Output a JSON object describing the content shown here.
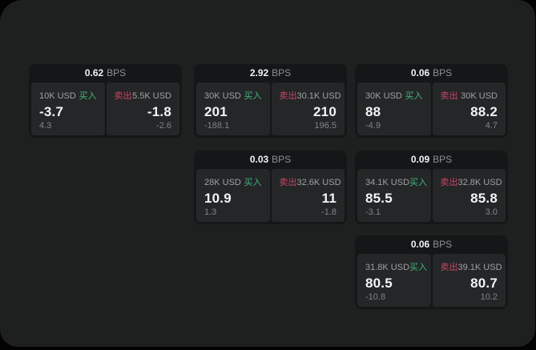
{
  "labels": {
    "bps_unit": "BPS",
    "buy": "买入",
    "sell": "卖出"
  },
  "colors": {
    "background": "#030303",
    "panel_bg": "#1e1f1f",
    "card_bg": "#151617",
    "cell_bg": "#252627",
    "buy": "#3eb878",
    "sell": "#c64665"
  },
  "cards": [
    {
      "bps": "0.62",
      "buy": {
        "size": "10K USD",
        "price": "-3.7",
        "delta": "4.3"
      },
      "sell": {
        "size": "5.5K USD",
        "price": "-1.8",
        "delta": "-2.6"
      }
    },
    {
      "bps": "2.92",
      "buy": {
        "size": "30K USD",
        "price": "201",
        "delta": "-188.1"
      },
      "sell": {
        "size": "30.1K USD",
        "price": "210",
        "delta": "196.5"
      }
    },
    {
      "bps": "0.06",
      "buy": {
        "size": "30K USD",
        "price": "88",
        "delta": "-4.9"
      },
      "sell": {
        "size": "30K USD",
        "price": "88.2",
        "delta": "4.7"
      }
    },
    {
      "bps": "0.03",
      "buy": {
        "size": "28K USD",
        "price": "10.9",
        "delta": "1.3"
      },
      "sell": {
        "size": "32.6K USD",
        "price": "11",
        "delta": "-1.8"
      }
    },
    {
      "bps": "0.09",
      "buy": {
        "size": "34.1K USD",
        "price": "85.5",
        "delta": "-3.1"
      },
      "sell": {
        "size": "32.8K USD",
        "price": "85.8",
        "delta": "3.0"
      }
    },
    {
      "bps": "0.06",
      "buy": {
        "size": "31.8K USD",
        "price": "80.5",
        "delta": "-10.8"
      },
      "sell": {
        "size": "39.1K USD",
        "price": "80.7",
        "delta": "10.2"
      }
    }
  ]
}
